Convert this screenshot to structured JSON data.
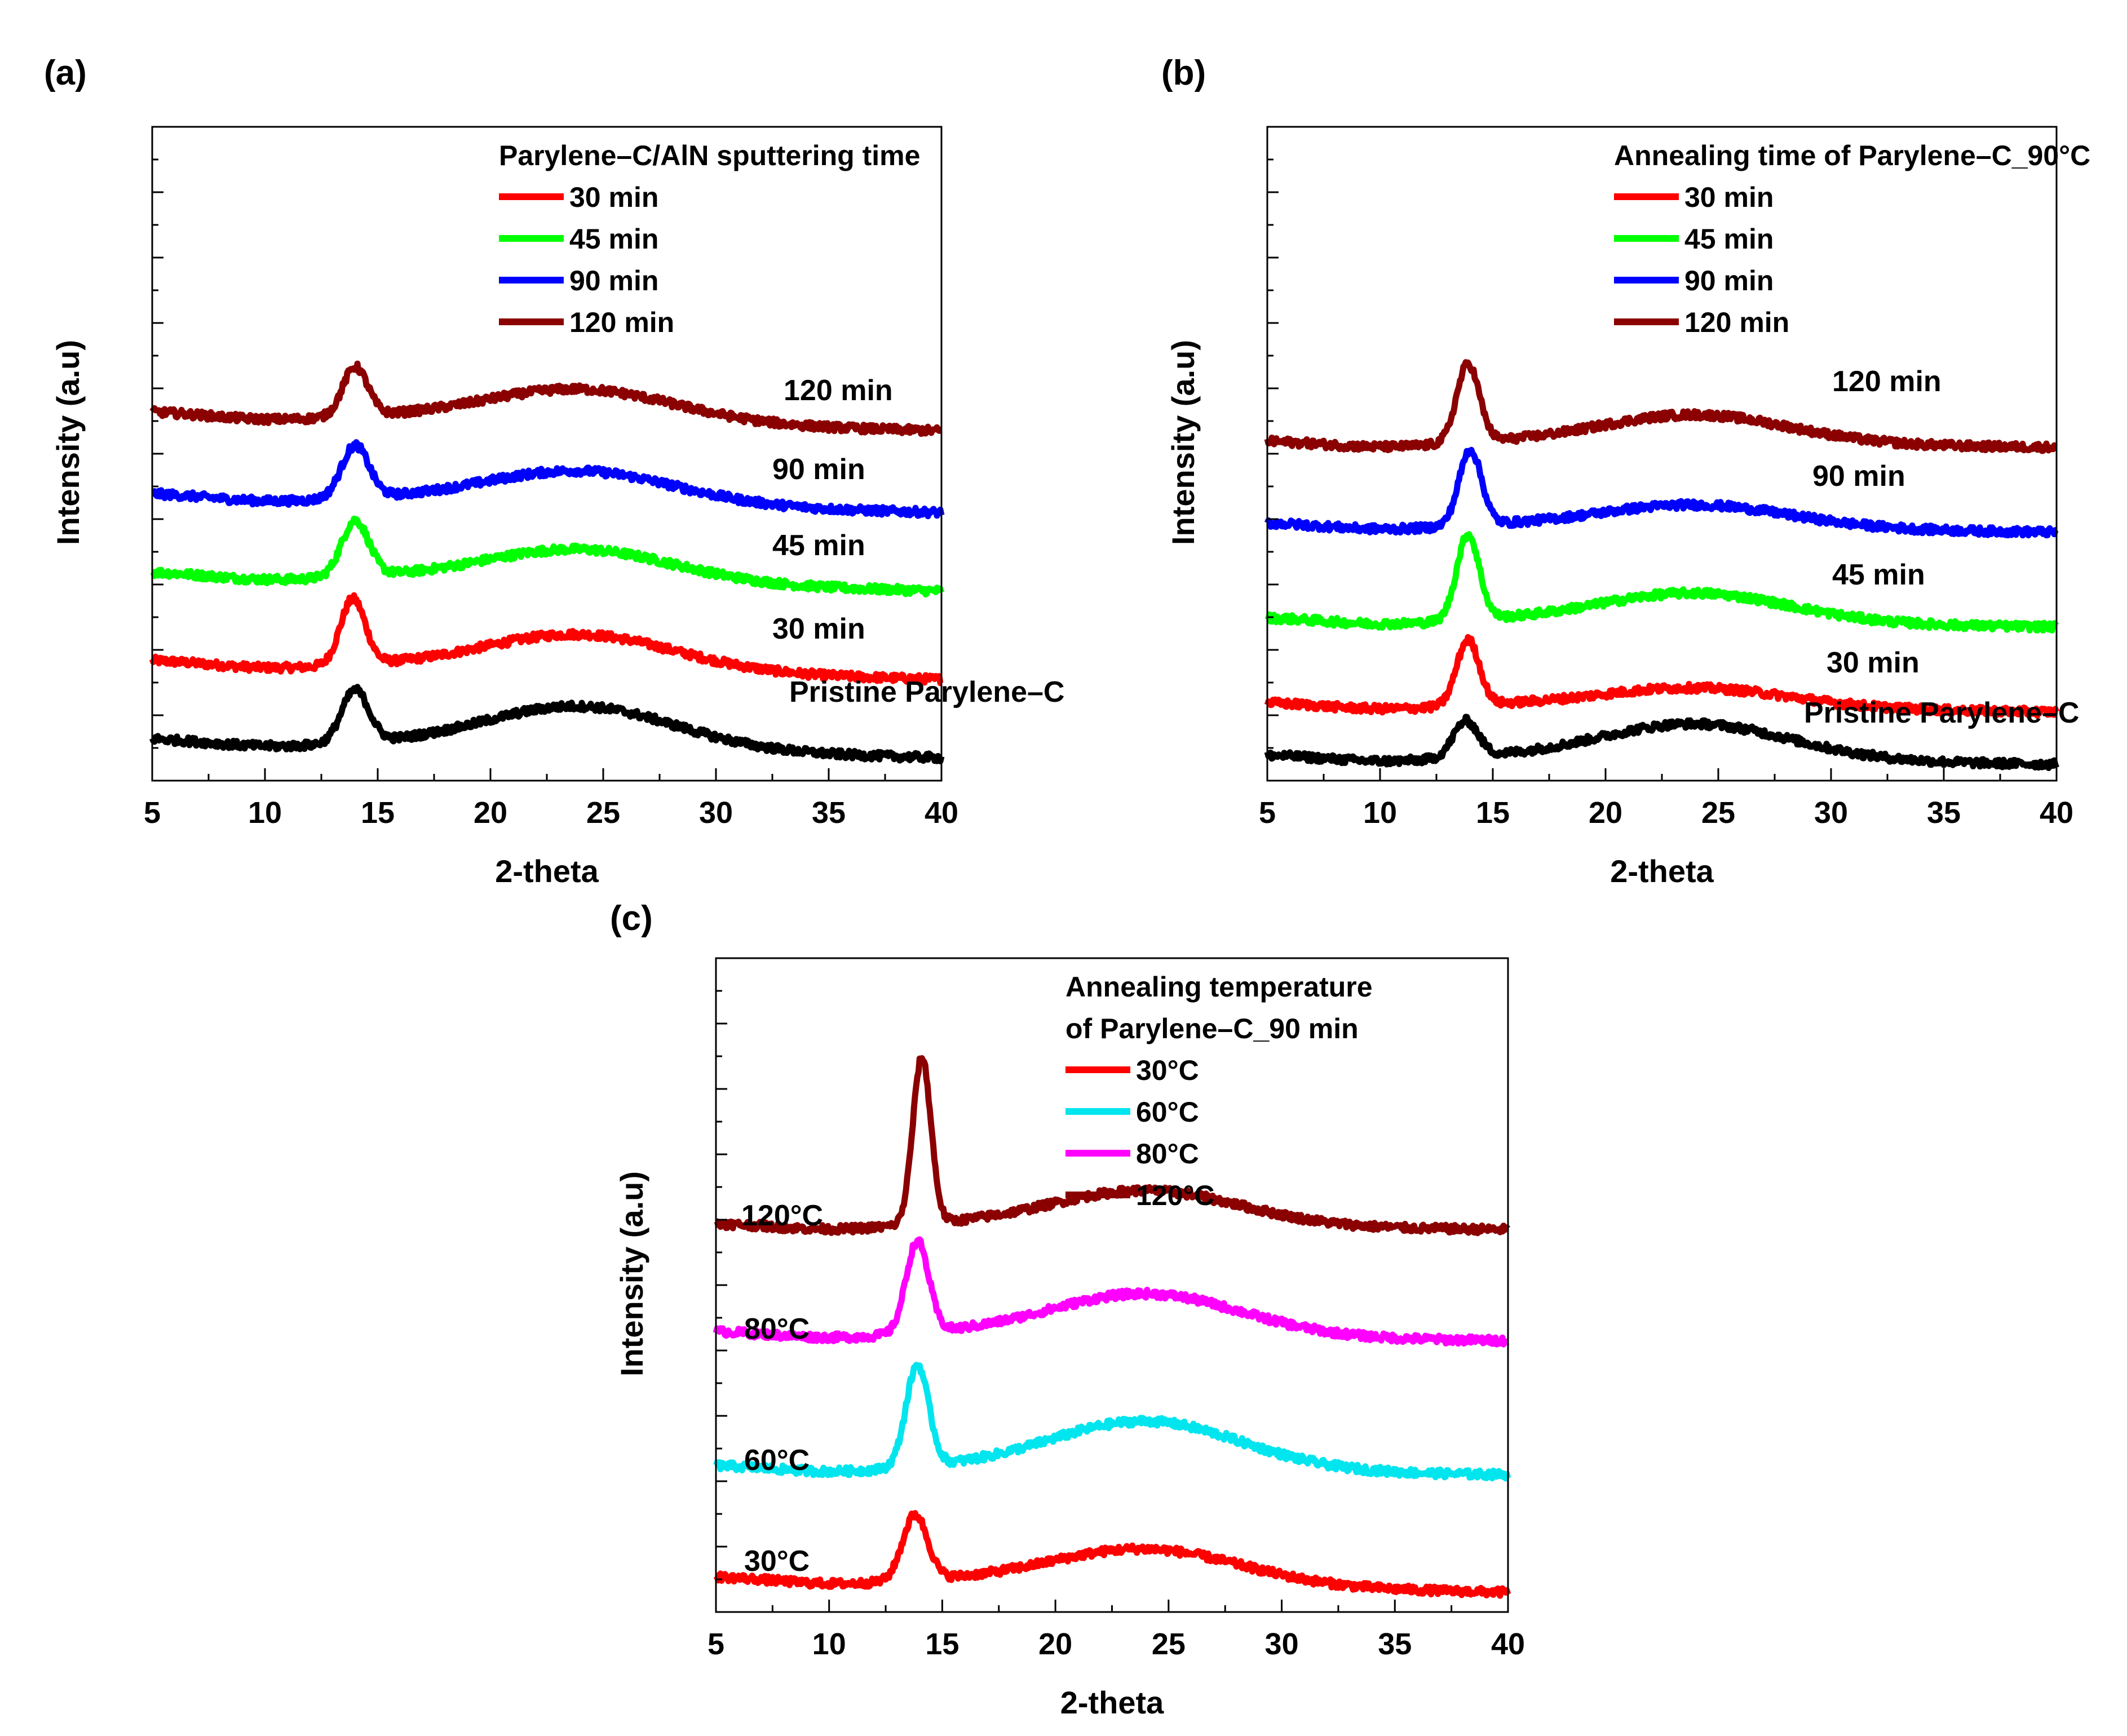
{
  "chart_data": [
    {
      "type": "line",
      "panel": "(a)",
      "title": "",
      "xlabel": "2-theta",
      "ylabel": "Intensity (a.u)",
      "xlim": [
        5,
        40
      ],
      "ylim": [
        0,
        10
      ],
      "xticks": [
        5,
        10,
        15,
        20,
        25,
        30,
        35,
        40
      ],
      "yticks_labeled": false,
      "legend_title": "Parylene–C/AlN sputtering time",
      "legend_title_lines": [
        "Parylene–C/AlN sputtering time"
      ],
      "legend_position": "top-right",
      "series": [
        {
          "name": "30 min",
          "color": "#ff0000",
          "label": "30 min",
          "offset": 1.55,
          "baseline_start": 0.3,
          "baseline_end": 0.0,
          "peak_x": 13.9,
          "peak_height": 1.0,
          "peak_width": 0.55,
          "hump_height": 0.55
        },
        {
          "name": "45 min",
          "color": "#00ff00",
          "label": "45 min",
          "offset": 2.9,
          "baseline_start": 0.3,
          "baseline_end": 0.0,
          "peak_x": 14.0,
          "peak_height": 0.85,
          "peak_width": 0.6,
          "hump_height": 0.5
        },
        {
          "name": "90 min",
          "color": "#0000ff",
          "label": "90 min",
          "offset": 4.1,
          "baseline_start": 0.3,
          "baseline_end": 0.0,
          "peak_x": 14.0,
          "peak_height": 0.8,
          "peak_width": 0.6,
          "hump_height": 0.5
        },
        {
          "name": "120 min",
          "color": "#8b0000",
          "label": "120 min",
          "offset": 5.35,
          "baseline_start": 0.3,
          "baseline_end": 0.0,
          "peak_x": 14.0,
          "peak_height": 0.75,
          "peak_width": 0.55,
          "hump_height": 0.5
        },
        {
          "name": "Pristine Parylene–C",
          "color": "#000000",
          "label": "Pristine Parylene–C",
          "in_legend": false,
          "offset": 0.35,
          "baseline_start": 0.3,
          "baseline_end": 0.0,
          "peak_x": 14.0,
          "peak_height": 0.8,
          "peak_width": 0.6,
          "hump_height": 0.65
        }
      ]
    },
    {
      "type": "line",
      "panel": "(b)",
      "title": "",
      "xlabel": "2-theta",
      "ylabel": "Intensity (a.u)",
      "xlim": [
        5,
        40
      ],
      "ylim": [
        0,
        10
      ],
      "xticks": [
        5,
        10,
        15,
        20,
        25,
        30,
        35,
        40
      ],
      "yticks_labeled": false,
      "legend_title": "Annealing time of Parylene–C_90°C",
      "legend_title_lines": [
        "Annealing time of Parylene–C_90°C"
      ],
      "legend_position": "top-right",
      "series": [
        {
          "name": "30 min",
          "color": "#ff0000",
          "label": "30 min",
          "offset": 1.05,
          "baseline_start": 0.15,
          "baseline_end": 0.0,
          "peak_x": 13.9,
          "peak_height": 1.0,
          "peak_width": 0.5,
          "hump_height": 0.3
        },
        {
          "name": "45 min",
          "color": "#00ff00",
          "label": "45 min",
          "offset": 2.35,
          "baseline_start": 0.15,
          "baseline_end": 0.0,
          "peak_x": 13.9,
          "peak_height": 1.3,
          "peak_width": 0.5,
          "hump_height": 0.45
        },
        {
          "name": "90 min",
          "color": "#0000ff",
          "label": "90 min",
          "offset": 3.8,
          "baseline_start": 0.15,
          "baseline_end": 0.0,
          "peak_x": 14.0,
          "peak_height": 1.15,
          "peak_width": 0.5,
          "hump_height": 0.35
        },
        {
          "name": "120 min",
          "color": "#8b0000",
          "label": "120 min",
          "offset": 5.1,
          "baseline_start": 0.1,
          "baseline_end": 0.0,
          "peak_x": 13.9,
          "peak_height": 1.2,
          "peak_width": 0.5,
          "hump_height": 0.45
        },
        {
          "name": "Pristine Parylene–C",
          "color": "#000000",
          "label": "Pristine Parylene–C",
          "in_legend": false,
          "offset": 0.25,
          "baseline_start": 0.15,
          "baseline_end": 0.0,
          "peak_x": 13.8,
          "peak_height": 0.55,
          "peak_width": 0.55,
          "hump_height": 0.55
        }
      ]
    },
    {
      "type": "line",
      "panel": "(c)",
      "title": "",
      "xlabel": "2-theta",
      "ylabel": "Intensity (a.u)",
      "xlim": [
        5,
        40
      ],
      "ylim": [
        0,
        10
      ],
      "xticks": [
        5,
        10,
        15,
        20,
        25,
        30,
        35,
        40
      ],
      "yticks_labeled": false,
      "legend_title": "Annealing temperature of Parylene–C_90 min",
      "legend_title_lines": [
        "Annealing temperature",
        "of Parylene–C_90 min"
      ],
      "legend_position": "top-right",
      "series": [
        {
          "name": "30°C",
          "color": "#ff0000",
          "label": "30°C",
          "offset": 0.3,
          "baseline_start": 0.25,
          "baseline_end": 0.0,
          "peak_x": 13.8,
          "peak_height": 1.0,
          "peak_width": 0.55,
          "hump_height": 0.55
        },
        {
          "name": "60°C",
          "color": "#00e5ee",
          "label": "60°C",
          "offset": 2.1,
          "baseline_start": 0.15,
          "baseline_end": 0.0,
          "peak_x": 13.9,
          "peak_height": 1.55,
          "peak_width": 0.5,
          "hump_height": 0.75
        },
        {
          "name": "80°C",
          "color": "#ff00ff",
          "label": "80°C",
          "offset": 4.15,
          "baseline_start": 0.15,
          "baseline_end": 0.0,
          "peak_x": 13.9,
          "peak_height": 1.4,
          "peak_width": 0.5,
          "hump_height": 0.65
        },
        {
          "name": "120°C",
          "color": "#8b0000",
          "label": "120°C",
          "offset": 5.85,
          "baseline_start": 0.1,
          "baseline_end": 0.0,
          "peak_x": 14.1,
          "peak_height": 2.55,
          "peak_width": 0.4,
          "hump_height": 0.55
        }
      ]
    }
  ]
}
